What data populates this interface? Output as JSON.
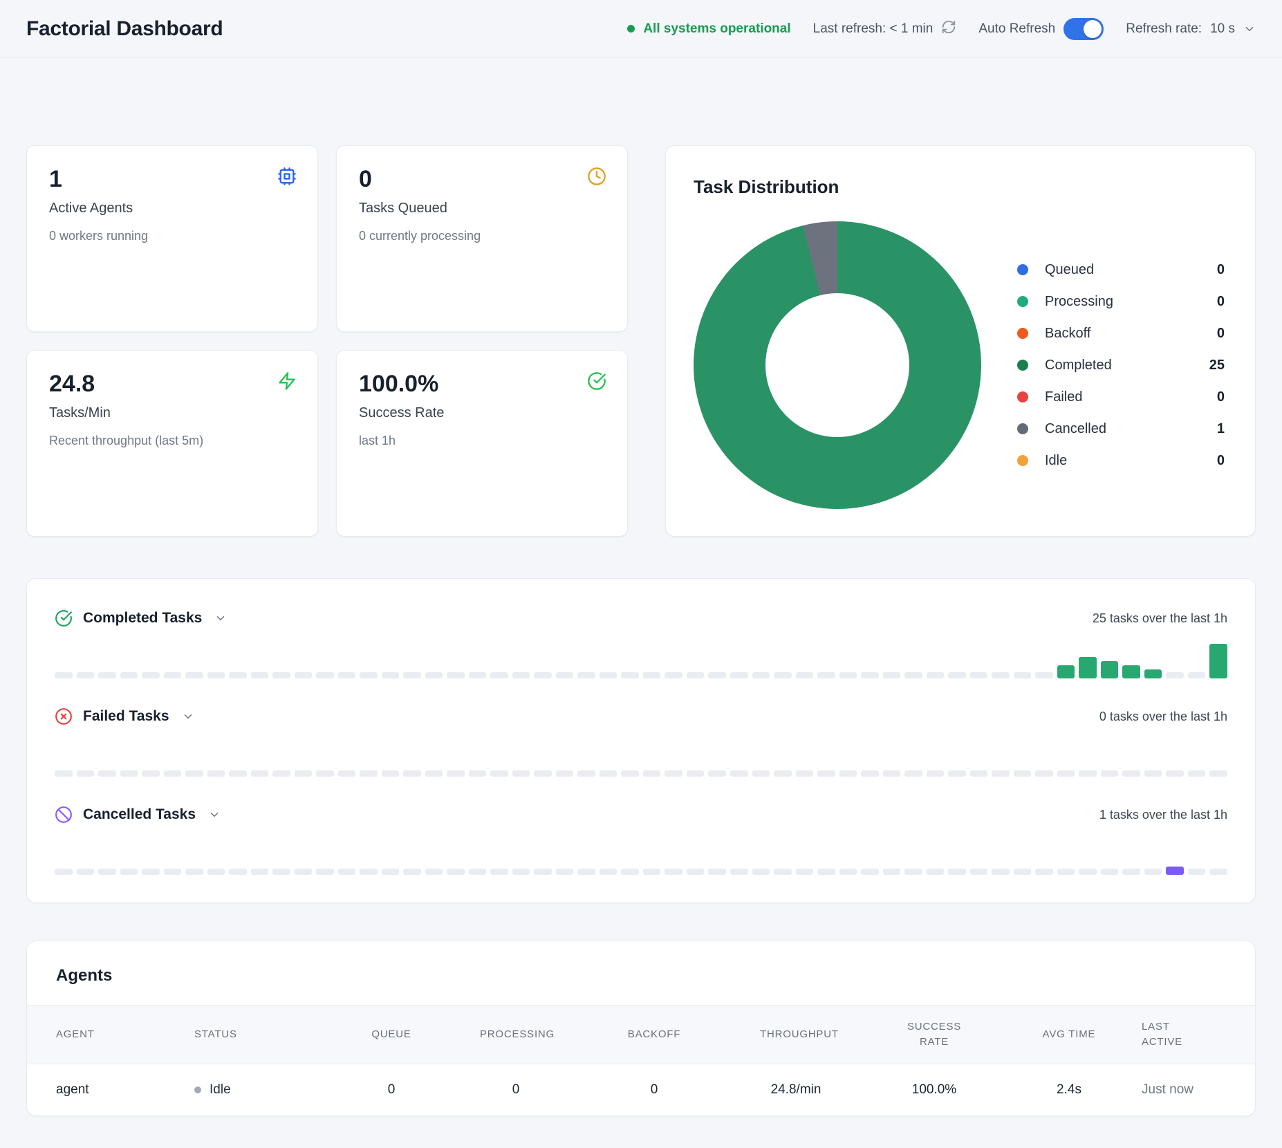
{
  "header": {
    "title": "Factorial Dashboard",
    "status_text": "All systems operational",
    "status_color": "#189b52",
    "last_refresh_label": "Last refresh: < 1 min",
    "auto_refresh_label": "Auto Refresh",
    "auto_refresh_on": true,
    "toggle_color": "#3073e8",
    "refresh_rate_label": "Refresh rate:",
    "refresh_rate_value": "10 s"
  },
  "stat_cards": [
    {
      "value": "1",
      "label": "Active Agents",
      "sub": "0 workers running",
      "icon": "cpu",
      "icon_color": "#2563eb"
    },
    {
      "value": "0",
      "label": "Tasks Queued",
      "sub": "0 currently processing",
      "icon": "clock",
      "icon_color": "#dca228"
    },
    {
      "value": "24.8",
      "label": "Tasks/Min",
      "sub": "Recent throughput (last 5m)",
      "icon": "zap",
      "icon_color": "#27c04f"
    },
    {
      "value": "100.0%",
      "label": "Success Rate",
      "sub": "last 1h",
      "icon": "check-circle",
      "icon_color": "#27c04f"
    }
  ],
  "task_distribution": {
    "title": "Task Distribution",
    "legend": [
      {
        "label": "Queued",
        "value": 0,
        "color": "#2f6ce6"
      },
      {
        "label": "Processing",
        "value": 0,
        "color": "#22ab7d"
      },
      {
        "label": "Backoff",
        "value": 0,
        "color": "#f2591d"
      },
      {
        "label": "Completed",
        "value": 25,
        "color": "#1b7e4f"
      },
      {
        "label": "Failed",
        "value": 0,
        "color": "#e8433f"
      },
      {
        "label": "Cancelled",
        "value": 1,
        "color": "#626b79"
      },
      {
        "label": "Idle",
        "value": 0,
        "color": "#f0a239"
      }
    ]
  },
  "task_sections": [
    {
      "title": "Completed Tasks",
      "icon": "check-circle",
      "icon_color": "#22a45e",
      "summary": "25 tasks over the last 1h",
      "chart": "completed-tasks-1h"
    },
    {
      "title": "Failed Tasks",
      "icon": "x-circle",
      "icon_color": "#e8433f",
      "summary": "0 tasks over the last 1h",
      "chart": "failed-tasks-1h"
    },
    {
      "title": "Cancelled Tasks",
      "icon": "ban",
      "icon_color": "#8b5cf6",
      "summary": "1 tasks over the last 1h",
      "chart": "cancelled-tasks-1h"
    }
  ],
  "chart_data": [
    {
      "id": "task-distribution",
      "type": "pie",
      "title": "Task Distribution",
      "labels": [
        "Queued",
        "Processing",
        "Backoff",
        "Completed",
        "Failed",
        "Cancelled",
        "Idle"
      ],
      "values": [
        0,
        0,
        0,
        25,
        0,
        1,
        0
      ],
      "colors": [
        "#2f6ce6",
        "#22ab7d",
        "#f2591d",
        "#2a9366",
        "#e8433f",
        "#6c737f",
        "#f0a239"
      ],
      "donut_hole_ratio": 0.5,
      "start_angle_deg": 0,
      "legend_position": "right"
    },
    {
      "id": "completed-tasks-1h",
      "type": "bar",
      "title": "Completed Tasks (last 1h, per-minute buckets)",
      "color": "#27a870",
      "y_max": 8,
      "total": 25,
      "values": [
        0,
        0,
        0,
        0,
        0,
        0,
        0,
        0,
        0,
        0,
        0,
        0,
        0,
        0,
        0,
        0,
        0,
        0,
        0,
        0,
        0,
        0,
        0,
        0,
        0,
        0,
        0,
        0,
        0,
        0,
        0,
        0,
        0,
        0,
        0,
        0,
        0,
        0,
        0,
        0,
        0,
        0,
        0,
        0,
        0,
        0,
        3,
        5,
        4,
        3,
        2,
        0,
        0,
        8
      ]
    },
    {
      "id": "failed-tasks-1h",
      "type": "bar",
      "title": "Failed Tasks (last 1h, per-minute buckets)",
      "color": "#e8433f",
      "y_max": 8,
      "total": 0,
      "values": [
        0,
        0,
        0,
        0,
        0,
        0,
        0,
        0,
        0,
        0,
        0,
        0,
        0,
        0,
        0,
        0,
        0,
        0,
        0,
        0,
        0,
        0,
        0,
        0,
        0,
        0,
        0,
        0,
        0,
        0,
        0,
        0,
        0,
        0,
        0,
        0,
        0,
        0,
        0,
        0,
        0,
        0,
        0,
        0,
        0,
        0,
        0,
        0,
        0,
        0,
        0,
        0,
        0,
        0
      ]
    },
    {
      "id": "cancelled-tasks-1h",
      "type": "bar",
      "title": "Cancelled Tasks (last 1h, per-minute buckets)",
      "color": "#7c5cf0",
      "y_max": 8,
      "total": 1,
      "values": [
        0,
        0,
        0,
        0,
        0,
        0,
        0,
        0,
        0,
        0,
        0,
        0,
        0,
        0,
        0,
        0,
        0,
        0,
        0,
        0,
        0,
        0,
        0,
        0,
        0,
        0,
        0,
        0,
        0,
        0,
        0,
        0,
        0,
        0,
        0,
        0,
        0,
        0,
        0,
        0,
        0,
        0,
        0,
        0,
        0,
        0,
        0,
        0,
        0,
        0,
        0,
        1,
        0,
        0
      ]
    }
  ],
  "agents_table": {
    "title": "Agents",
    "columns": [
      "Agent",
      "Status",
      "Queue",
      "Processing",
      "Backoff",
      "Throughput",
      "Success Rate",
      "Avg Time",
      "Last Active"
    ],
    "rows": [
      {
        "agent": "agent",
        "status": "Idle",
        "queue": "0",
        "processing": "0",
        "backoff": "0",
        "throughput": "24.8/min",
        "success_rate": "100.0%",
        "avg_time": "2.4s",
        "last_active": "Just now"
      }
    ]
  }
}
